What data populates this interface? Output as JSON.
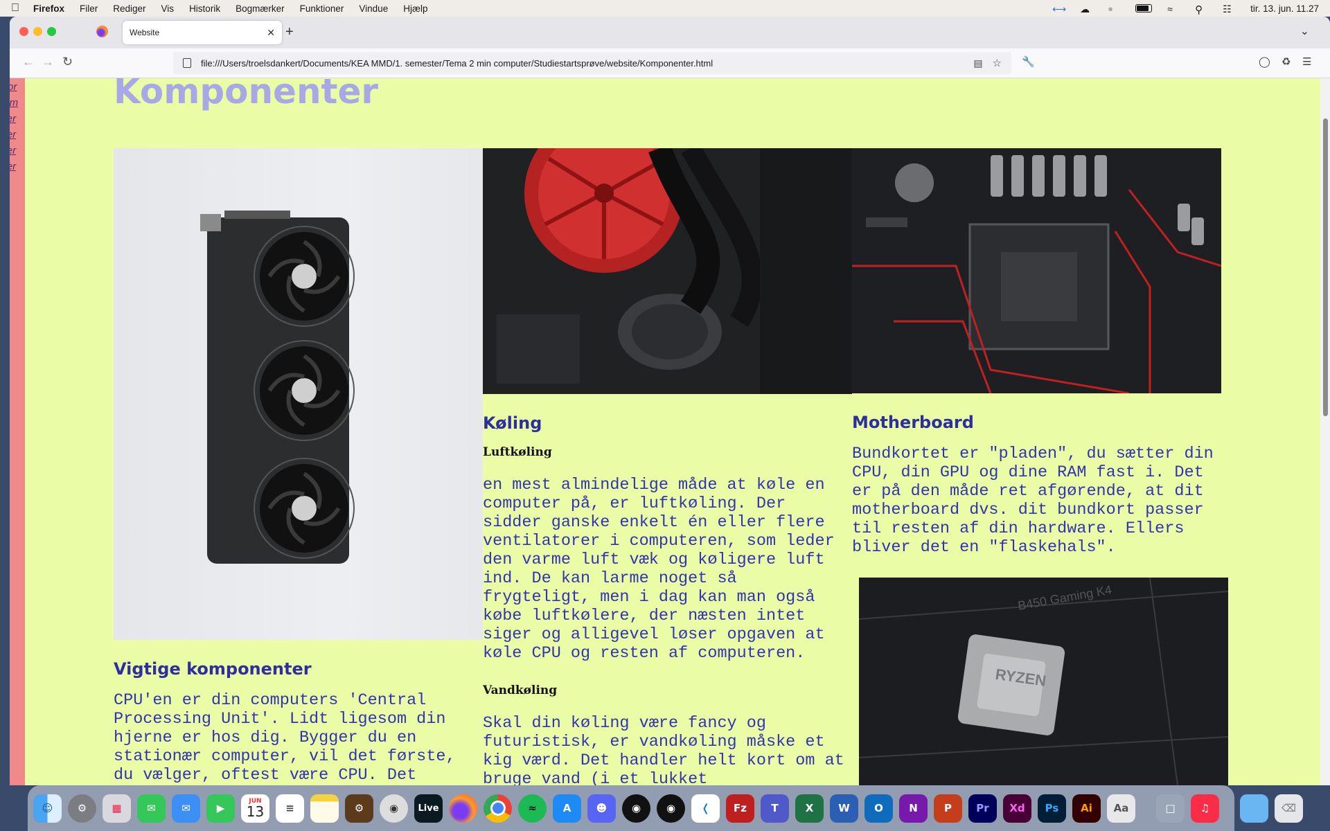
{
  "menubar": {
    "app": "Firefox",
    "items": [
      "Filer",
      "Rediger",
      "Vis",
      "Historik",
      "Bogmærker",
      "Funktioner",
      "Vindue",
      "Hjælp"
    ],
    "clock": "tir. 13. jun. 11.27"
  },
  "browser": {
    "tab_title": "Website",
    "url": "file:///Users/troelsdankert/Documents/KEA MMD/1. semester/Tema 2 min computer/Studiestartsprøve/website/Komponenter.html"
  },
  "sidenav": {
    "links": [
      "For",
      "Om",
      "Ter",
      "Ter",
      "Ter",
      "Ter"
    ]
  },
  "page": {
    "title": "Komponenter",
    "col1": {
      "heading": "Vigtige komponenter",
      "text": "CPU'en er din computers 'Central Processing Unit'. Lidt ligesom din hjerne er hos dig. Bygger du en stationær computer, vil det første, du vælger, oftest være CPU. Det skyldes, at det er"
    },
    "col2": {
      "heading": "Køling",
      "sub1": "Luftkøling",
      "text1": "en mest almindelige måde at køle en computer på, er luftkøling. Der sidder ganske enkelt én eller flere ventilatorer i computeren, som leder den varme luft væk og køligere luft ind. De kan larme noget så frygteligt, men i dag kan man også købe luftkølere, der næsten intet siger og alligevel løser opgaven at køle CPU og resten af computeren.",
      "sub2": "Vandkøling",
      "text2": "Skal din køling være fancy og futuristisk, er vandkøling måske et kig værd. Det handler helt kort om at bruge vand (i et lukket"
    },
    "col3": {
      "heading": "Motherboard",
      "text": "Bundkortet er \"pladen\", du sætter din CPU, din GPU og dine RAM fast i. Det er på den måde ret afgørende, at dit motherboard dvs. dit bundkort passer til resten af din hardware. Ellers bliver det en \"flaskehals\"."
    }
  },
  "dock": {
    "calendar_month": "JUN",
    "calendar_day": "13",
    "live_label": "Live",
    "apps": [
      "Finder",
      "Systemindstillinger",
      "Launchpad",
      "Beskeder",
      "Mail",
      "FaceTime",
      "Kalender",
      "Påmindelser",
      "Noter",
      "Spil",
      "Kamera",
      "Live",
      "Firefox",
      "Chrome",
      "Spotify",
      "App Store",
      "Discord",
      "Vinyl",
      "Vinyl",
      "VS Code",
      "FileZilla",
      "Teams",
      "Excel",
      "Word",
      "Outlook",
      "OneNote",
      "PowerPoint",
      "Premiere Pro",
      "Adobe XD",
      "Photoshop",
      "Illustrator",
      "Fontbog",
      "Skærmbillede",
      "Musik",
      "Mappe",
      "Papirkurv"
    ]
  }
}
